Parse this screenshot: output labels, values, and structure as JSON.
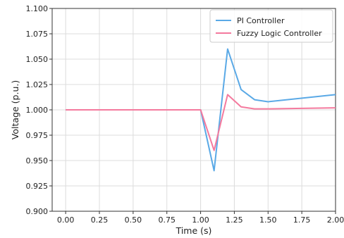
{
  "chart_data": {
    "type": "line",
    "xlabel": "Time (s)",
    "ylabel": "Voltage (p.u.)",
    "xlim": [
      -0.1,
      2.0
    ],
    "ylim": [
      0.9,
      1.1
    ],
    "xticks": [
      0.0,
      0.25,
      0.5,
      0.75,
      1.0,
      1.25,
      1.5,
      1.75,
      2.0
    ],
    "xtick_labels": [
      "0.00",
      "0.25",
      "0.50",
      "0.75",
      "1.00",
      "1.25",
      "1.50",
      "1.75",
      "2.00"
    ],
    "yticks": [
      0.9,
      0.925,
      0.95,
      0.975,
      1.0,
      1.025,
      1.05,
      1.075,
      1.1
    ],
    "ytick_labels": [
      "0.900",
      "0.925",
      "0.950",
      "0.975",
      "1.000",
      "1.025",
      "1.050",
      "1.075",
      "1.100"
    ],
    "grid": true,
    "legend_position": "top-right",
    "series": [
      {
        "name": "PI Controller",
        "color": "#5aa9e6",
        "x": [
          0.0,
          1.0,
          1.1,
          1.2,
          1.3,
          1.4,
          1.5,
          2.0
        ],
        "y": [
          1.0,
          1.0,
          0.94,
          1.06,
          1.02,
          1.01,
          1.008,
          1.015
        ]
      },
      {
        "name": "Fuzzy Logic Controller",
        "color": "#f47a9e",
        "x": [
          0.0,
          1.0,
          1.1,
          1.2,
          1.3,
          1.4,
          1.5,
          2.0
        ],
        "y": [
          1.0,
          1.0,
          0.96,
          1.015,
          1.003,
          1.001,
          1.001,
          1.002
        ]
      }
    ]
  }
}
